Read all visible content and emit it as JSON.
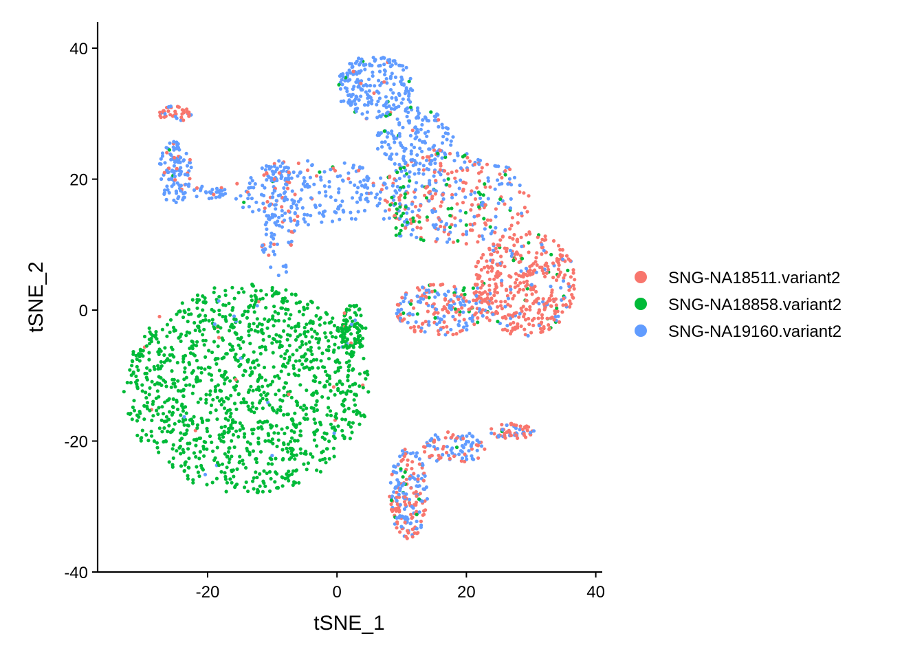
{
  "chart_data": {
    "type": "scatter",
    "title": "",
    "xlabel": "tSNE_1",
    "ylabel": "tSNE_2",
    "xlim": [
      -37,
      41
    ],
    "ylim": [
      -40,
      44
    ],
    "xticks": [
      -20,
      0,
      20,
      40
    ],
    "yticks": [
      -40,
      -20,
      0,
      20,
      40
    ],
    "tick_labels_x": [
      "-20",
      "0",
      "20",
      "40"
    ],
    "tick_labels_y": [
      "-40",
      "-20",
      "0",
      "20",
      "40"
    ],
    "grid": false,
    "legend_position": "right",
    "series": [
      {
        "name": "SNG-NA18511.variant2",
        "color": "#F8766D"
      },
      {
        "name": "SNG-NA18858.variant2",
        "color": "#00BA38"
      },
      {
        "name": "SNG-NA19160.variant2",
        "color": "#619CFF"
      }
    ],
    "clusters": [
      {
        "series": 1,
        "shape": "ellipse",
        "cx": -14,
        "cy": -12,
        "rx": 19,
        "ry": 16,
        "n": 1250,
        "mix": [
          0.01,
          0.98,
          0.01
        ]
      },
      {
        "series": 1,
        "shape": "ellipse",
        "cx": -2,
        "cy": -2,
        "rx": 4.5,
        "ry": 5,
        "n": 0,
        "mix": [
          0.0,
          1.0,
          0.0
        ]
      },
      {
        "series": 1,
        "shape": "ellipse",
        "cx": 2.5,
        "cy": -3,
        "rx": 2,
        "ry": 4,
        "n": 90,
        "mix": [
          0.03,
          0.92,
          0.05
        ]
      },
      {
        "series": 0,
        "shape": "ellipse",
        "cx": 29,
        "cy": 4,
        "rx": 8,
        "ry": 8,
        "n": 420,
        "mix": [
          0.82,
          0.05,
          0.13
        ]
      },
      {
        "series": 0,
        "shape": "ellipse",
        "cx": 16,
        "cy": 0,
        "rx": 7,
        "ry": 4,
        "n": 200,
        "mix": [
          0.55,
          0.05,
          0.4
        ]
      },
      {
        "series": 2,
        "shape": "ellipse",
        "cx": 18,
        "cy": 17,
        "rx": 12,
        "ry": 7,
        "n": 320,
        "mix": [
          0.42,
          0.13,
          0.45
        ]
      },
      {
        "series": 2,
        "shape": "ellipse",
        "cx": 6,
        "cy": 34,
        "rx": 6,
        "ry": 5,
        "n": 210,
        "mix": [
          0.04,
          0.03,
          0.93
        ]
      },
      {
        "series": 2,
        "shape": "ellipse",
        "cx": 12,
        "cy": 26,
        "rx": 6,
        "ry": 5,
        "n": 150,
        "mix": [
          0.06,
          0.06,
          0.88
        ]
      },
      {
        "series": 2,
        "shape": "ellipse",
        "cx": -4,
        "cy": 18,
        "rx": 12,
        "ry": 5,
        "n": 200,
        "mix": [
          0.08,
          0.02,
          0.9
        ]
      },
      {
        "series": 2,
        "shape": "ellipse",
        "cx": -9,
        "cy": 14,
        "rx": 3,
        "ry": 9,
        "n": 120,
        "mix": [
          0.12,
          0.0,
          0.88
        ]
      },
      {
        "series": 2,
        "shape": "ellipse",
        "cx": -25,
        "cy": 21,
        "rx": 2.5,
        "ry": 5,
        "n": 110,
        "mix": [
          0.06,
          0.02,
          0.92
        ]
      },
      {
        "series": 0,
        "shape": "ellipse",
        "cx": -25,
        "cy": 30,
        "rx": 2.5,
        "ry": 1.2,
        "n": 45,
        "mix": [
          0.82,
          0.0,
          0.18
        ]
      },
      {
        "series": 2,
        "shape": "ellipse",
        "cx": -20,
        "cy": 18,
        "rx": 3,
        "ry": 1.0,
        "n": 30,
        "mix": [
          0.05,
          0.0,
          0.95
        ]
      },
      {
        "series": 2,
        "shape": "ellipse",
        "cx": 11,
        "cy": -28,
        "rx": 3,
        "ry": 7,
        "n": 200,
        "mix": [
          0.45,
          0.05,
          0.5
        ]
      },
      {
        "series": 2,
        "shape": "ellipse",
        "cx": 18,
        "cy": -21,
        "rx": 5,
        "ry": 2.5,
        "n": 90,
        "mix": [
          0.4,
          0.05,
          0.55
        ]
      },
      {
        "series": 0,
        "shape": "ellipse",
        "cx": 27,
        "cy": -18.5,
        "rx": 3.5,
        "ry": 1.2,
        "n": 60,
        "mix": [
          0.62,
          0.06,
          0.32
        ]
      },
      {
        "series": 0,
        "shape": "ellipse",
        "cx": 10,
        "cy": 15,
        "rx": 2,
        "ry": 4,
        "n": 40,
        "mix": [
          0.2,
          0.6,
          0.2
        ]
      }
    ]
  },
  "legend": {
    "items": [
      {
        "label": "SNG-NA18511.variant2",
        "color": "#F8766D"
      },
      {
        "label": "SNG-NA18858.variant2",
        "color": "#00BA38"
      },
      {
        "label": "SNG-NA19160.variant2",
        "color": "#619CFF"
      }
    ]
  }
}
